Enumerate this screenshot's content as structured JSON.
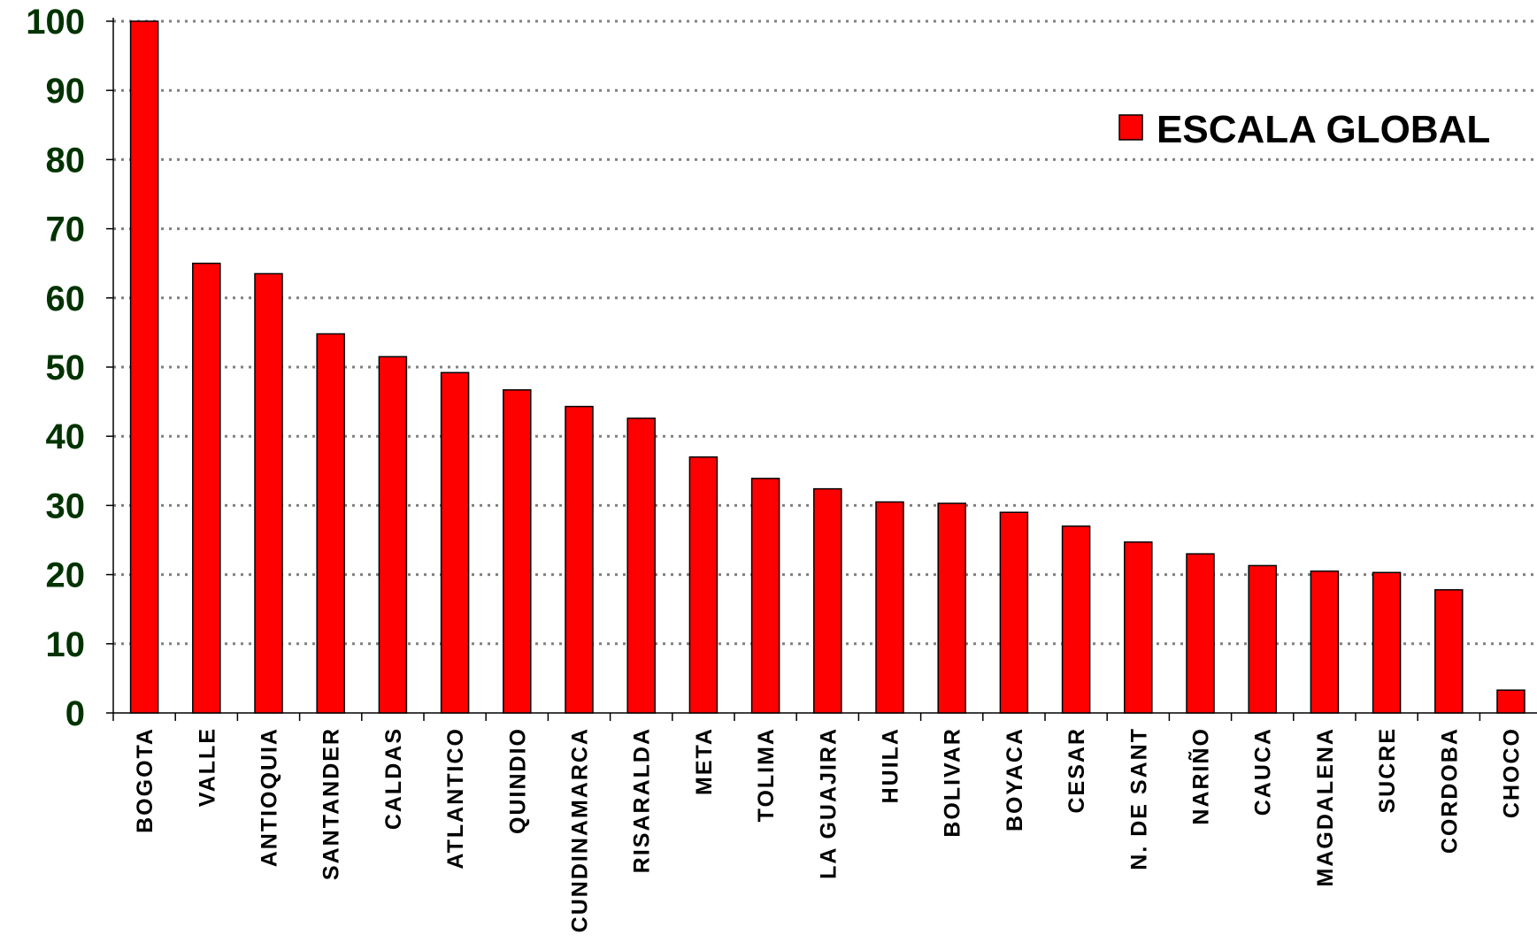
{
  "chart_data": {
    "type": "bar",
    "title": "",
    "xlabel": "",
    "ylabel": "",
    "categories": [
      "BOGOTA",
      "VALLE",
      "ANTIOQUIA",
      "SANTANDER",
      "CALDAS",
      "ATLANTICO",
      "QUINDIO",
      "CUNDINAMARCA",
      "RISARALDA",
      "META",
      "TOLIMA",
      "LA GUAJIRA",
      "HUILA",
      "BOLIVAR",
      "BOYACA",
      "CESAR",
      "N. DE SANT",
      "NARIÑO",
      "CAUCA",
      "MAGDALENA",
      "SUCRE",
      "CORDOBA",
      "CHOCO"
    ],
    "series": [
      {
        "name": "ESCALA GLOBAL",
        "values": [
          100,
          65,
          63.5,
          54.8,
          51.5,
          49.2,
          46.7,
          44.3,
          42.6,
          37,
          33.9,
          32.4,
          30.5,
          30.3,
          29,
          27,
          24.7,
          23,
          21.3,
          20.5,
          20.3,
          17.8,
          3.3
        ]
      }
    ],
    "ylim": [
      0,
      100
    ],
    "yticks": [
      "0",
      "10",
      "20",
      "30",
      "40",
      "50",
      "60",
      "70",
      "80",
      "90",
      "100"
    ],
    "grid": true,
    "legend_position": "top-right",
    "colors": {
      "bar": "#ff0000",
      "bar_outline": "#000000",
      "ytick_text": "#003300",
      "grid": "#808080"
    }
  }
}
